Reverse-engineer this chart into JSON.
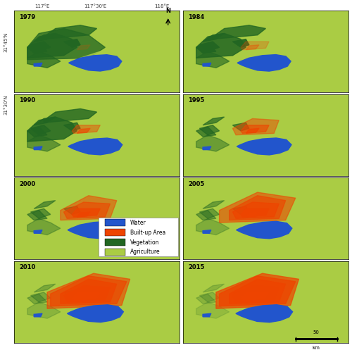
{
  "years": [
    "1979",
    "1984",
    "1990",
    "1995",
    "2000",
    "2005",
    "2010",
    "2015"
  ],
  "legend_items": [
    {
      "label": "Water",
      "color": "#2255CC"
    },
    {
      "label": "Built-up Area",
      "color": "#EE4400"
    },
    {
      "label": "Vegetation",
      "color": "#226622"
    },
    {
      "label": "Agriculture",
      "color": "#AACC44"
    }
  ],
  "bg_color": "#FFFFFF",
  "border_color": "#000000",
  "title_fontsize": 7,
  "legend_fontsize": 7,
  "coord_labels": [
    "117°E",
    "117°30’E",
    "118°E"
  ],
  "lat_labels": [
    "31°45’N",
    "31°30’N"
  ],
  "scale_bar_label": "50",
  "scale_bar_unit": "km"
}
